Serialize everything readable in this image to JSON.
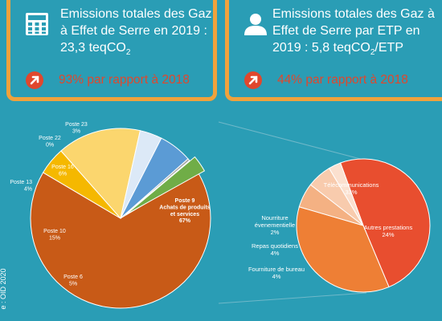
{
  "card_left": {
    "title": "Emissions totales des Gaz à Effet de Serre en 2019 : 23,3 teqCO",
    "title_sub": "2",
    "trend": "93% par rapport à 2018",
    "icon": "calculator-icon"
  },
  "card_right": {
    "title": "Emissions totales des Gaz à Effet de Serre par ETP en 2019 : 5,8 teqCO",
    "title_sub": "2",
    "title_tail": "/ETP",
    "trend": "44% par rapport à 2018",
    "icon": "person-icon"
  },
  "credit": "e : OID 2020",
  "colors": {
    "background": "#2a9db5",
    "card_border": "#f0a23c",
    "trend": "#e0472d"
  },
  "chart_data": [
    {
      "type": "pie",
      "slices": [
        {
          "name": "Poste 9 Achats de produits et services",
          "label_lines": [
            "Poste 9",
            "Achats de produits",
            "et services"
          ],
          "value_label": "67%",
          "value": 67,
          "color": "#c85a17",
          "exploded": true
        },
        {
          "name": "Poste 6",
          "label_lines": [
            "Poste 6"
          ],
          "value_label": "5%",
          "value": 5,
          "color": "#f5b800"
        },
        {
          "name": "Poste 10",
          "label_lines": [
            "Poste 10"
          ],
          "value_label": "15%",
          "value": 15,
          "color": "#fbd66e"
        },
        {
          "name": "Poste 13",
          "label_lines": [
            "Poste 13"
          ],
          "value_label": "4%",
          "value": 4,
          "color": "#dce9f7"
        },
        {
          "name": "Poste 16",
          "label_lines": [
            "Poste 16"
          ],
          "value_label": "6%",
          "value": 6,
          "color": "#5b9bd5"
        },
        {
          "name": "Poste 22",
          "label_lines": [
            "Poste 22"
          ],
          "value_label": "0%",
          "value": 0,
          "color": "#a5a5a5"
        },
        {
          "name": "Poste 23",
          "label_lines": [
            "Poste 23"
          ],
          "value_label": "3%",
          "value": 3,
          "color": "#70ad47"
        }
      ]
    },
    {
      "type": "pie",
      "slices": [
        {
          "name": "Télécommunications",
          "value_label": "33%",
          "value": 33,
          "color": "#e84e2f"
        },
        {
          "name": "Autres prestations",
          "value_label": "24%",
          "value": 24,
          "color": "#ee7f35"
        },
        {
          "name": "Fourniture de bureau",
          "value_label": "4%",
          "value": 4,
          "color": "#f4b183"
        },
        {
          "name": "Repas quotidiens",
          "value_label": "4%",
          "value": 4,
          "color": "#f8cbad"
        },
        {
          "name": "Nourriture évenementielle",
          "label_lines": [
            "Nourriture",
            "évenementielle"
          ],
          "value_label": "2%",
          "value": 2,
          "color": "#fbe0cf"
        }
      ]
    }
  ]
}
